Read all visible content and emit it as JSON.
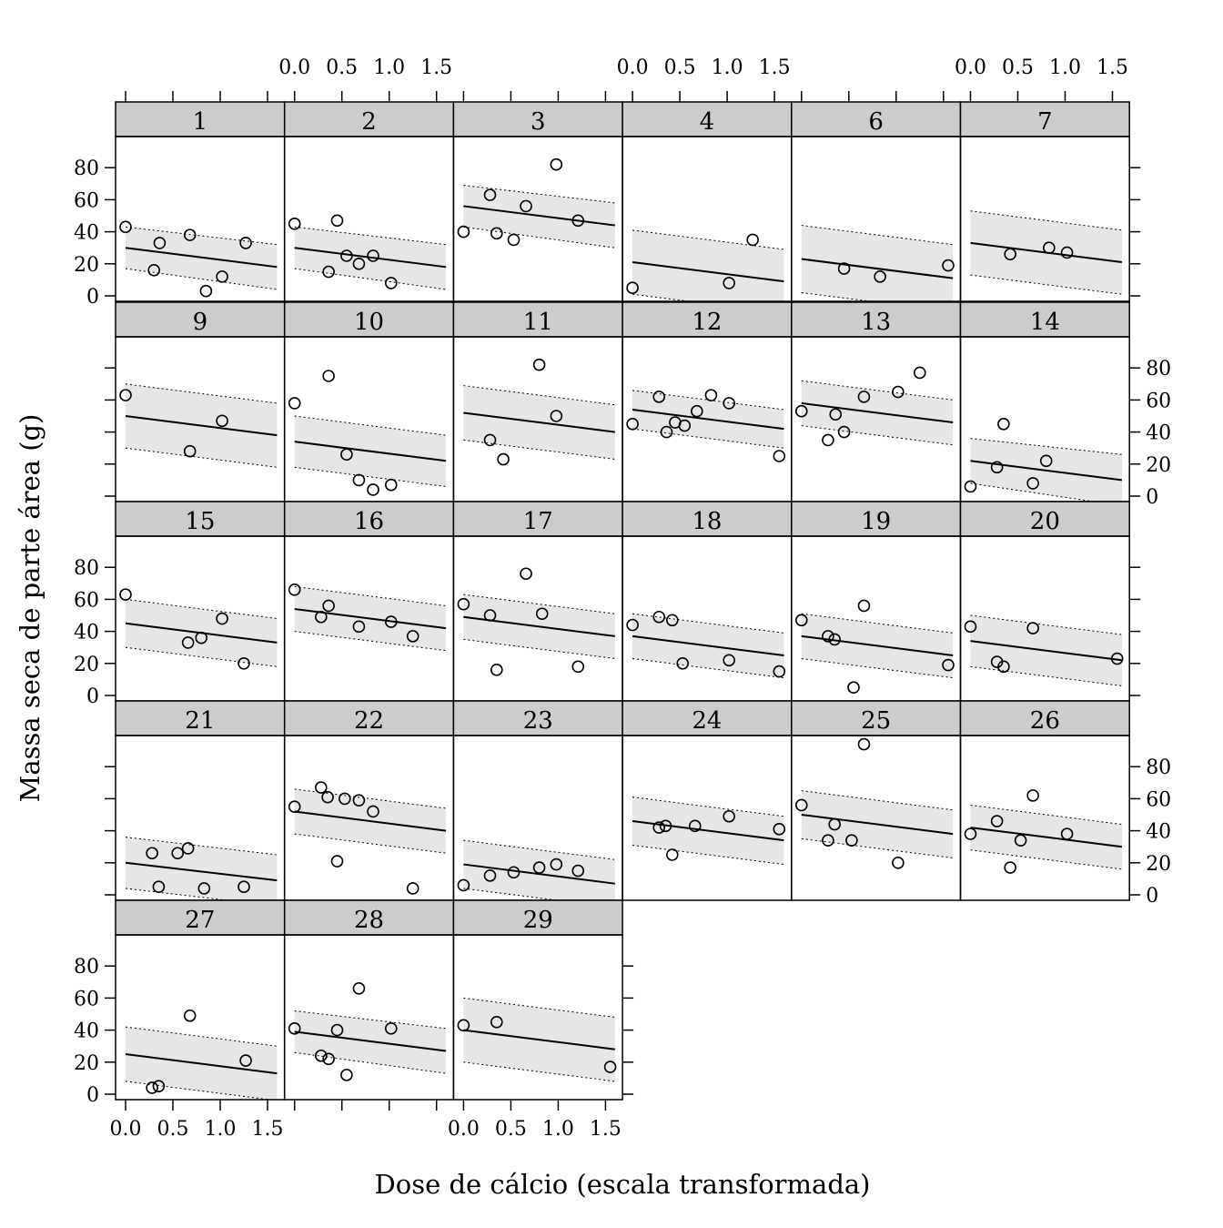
{
  "chart_data": {
    "type": "scatter",
    "title": "",
    "xlabel": "Dose de cálcio (escala transformada)",
    "ylabel": "Massa seca de parte área (g)",
    "xlim": [
      -0.1,
      1.65
    ],
    "ylim": [
      -2,
      100
    ],
    "xticks": [
      0.0,
      0.5,
      1.0,
      1.5
    ],
    "xtick_labels": [
      "0.0",
      "0.5",
      "1.0",
      "1.5"
    ],
    "yticks": [
      0,
      20,
      40,
      60,
      80
    ],
    "ytick_labels": [
      "0",
      "20",
      "40",
      "60",
      "80"
    ],
    "layout": "5 rows x 6 columns, panels ordered row-wise from the top-left",
    "band": "grey prediction band with dotted bounds, solid fitted line",
    "panels": [
      {
        "label": "1",
        "fit": [
          30,
          18
        ],
        "band": [
          13,
          14
        ],
        "points": [
          [
            0,
            43
          ],
          [
            0.3,
            16
          ],
          [
            0.36,
            33
          ],
          [
            0.68,
            38
          ],
          [
            0.85,
            3
          ],
          [
            1.02,
            12
          ],
          [
            1.27,
            33
          ]
        ]
      },
      {
        "label": "2",
        "fit": [
          30,
          18
        ],
        "band": [
          13,
          14
        ],
        "points": [
          [
            0,
            45
          ],
          [
            0.36,
            15
          ],
          [
            0.45,
            47
          ],
          [
            0.55,
            25
          ],
          [
            0.68,
            20
          ],
          [
            0.83,
            25
          ],
          [
            1.02,
            8
          ]
        ]
      },
      {
        "label": "3",
        "fit": [
          56,
          44
        ],
        "band": [
          13,
          14
        ],
        "points": [
          [
            0,
            40
          ],
          [
            0.28,
            63
          ],
          [
            0.35,
            39
          ],
          [
            0.53,
            35
          ],
          [
            0.66,
            56
          ],
          [
            0.98,
            82
          ],
          [
            1.21,
            47
          ]
        ]
      },
      {
        "label": "4",
        "fit": [
          21,
          9
        ],
        "band": [
          20,
          20
        ],
        "points": [
          [
            0,
            5
          ],
          [
            1.02,
            8
          ],
          [
            1.27,
            35
          ]
        ]
      },
      {
        "label": "6",
        "fit": [
          23,
          11
        ],
        "band": [
          21,
          21
        ],
        "points": [
          [
            0.45,
            17
          ],
          [
            0.83,
            12
          ],
          [
            1.55,
            19
          ]
        ]
      },
      {
        "label": "7",
        "fit": [
          33,
          21
        ],
        "band": [
          20,
          20
        ],
        "points": [
          [
            0.42,
            26
          ],
          [
            0.83,
            30
          ],
          [
            1.02,
            27
          ]
        ]
      },
      {
        "label": "9",
        "fit": [
          50,
          38
        ],
        "band": [
          20,
          20
        ],
        "points": [
          [
            0,
            63
          ],
          [
            0.68,
            28
          ],
          [
            1.02,
            47
          ]
        ]
      },
      {
        "label": "10",
        "fit": [
          34,
          22
        ],
        "band": [
          16,
          16
        ],
        "points": [
          [
            0,
            58
          ],
          [
            0.36,
            75
          ],
          [
            0.55,
            26
          ],
          [
            0.68,
            10
          ],
          [
            0.83,
            4
          ],
          [
            1.02,
            7
          ]
        ]
      },
      {
        "label": "11",
        "fit": [
          52,
          40
        ],
        "band": [
          17,
          17
        ],
        "points": [
          [
            0.28,
            35
          ],
          [
            0.42,
            23
          ],
          [
            0.8,
            82
          ],
          [
            0.98,
            50
          ]
        ]
      },
      {
        "label": "12",
        "fit": [
          54,
          42
        ],
        "band": [
          12,
          12
        ],
        "points": [
          [
            0,
            45
          ],
          [
            0.28,
            62
          ],
          [
            0.36,
            40
          ],
          [
            0.45,
            46
          ],
          [
            0.55,
            44
          ],
          [
            0.68,
            53
          ],
          [
            0.83,
            63
          ],
          [
            1.02,
            58
          ],
          [
            1.55,
            25
          ]
        ]
      },
      {
        "label": "13",
        "fit": [
          58,
          46
        ],
        "band": [
          14,
          14
        ],
        "points": [
          [
            0,
            53
          ],
          [
            0.28,
            35
          ],
          [
            0.36,
            51
          ],
          [
            0.45,
            40
          ],
          [
            0.66,
            62
          ],
          [
            1.02,
            65
          ],
          [
            1.25,
            77
          ]
        ]
      },
      {
        "label": "14",
        "fit": [
          22,
          10
        ],
        "band": [
          14,
          16
        ],
        "points": [
          [
            0,
            6
          ],
          [
            0.28,
            18
          ],
          [
            0.35,
            45
          ],
          [
            0.66,
            8
          ],
          [
            0.8,
            22
          ]
        ]
      },
      {
        "label": "15",
        "fit": [
          45,
          33
        ],
        "band": [
          15,
          15
        ],
        "points": [
          [
            0,
            63
          ],
          [
            0.66,
            33
          ],
          [
            0.8,
            36
          ],
          [
            1.02,
            48
          ],
          [
            1.25,
            20
          ]
        ]
      },
      {
        "label": "16",
        "fit": [
          54,
          42
        ],
        "band": [
          14,
          14
        ],
        "points": [
          [
            0,
            66
          ],
          [
            0.28,
            49
          ],
          [
            0.36,
            56
          ],
          [
            0.68,
            43
          ],
          [
            1.02,
            46
          ],
          [
            1.25,
            37
          ]
        ]
      },
      {
        "label": "17",
        "fit": [
          49,
          37
        ],
        "band": [
          14,
          14
        ],
        "points": [
          [
            0,
            57
          ],
          [
            0.28,
            50
          ],
          [
            0.35,
            16
          ],
          [
            0.66,
            76
          ],
          [
            0.83,
            51
          ],
          [
            1.21,
            18
          ]
        ]
      },
      {
        "label": "18",
        "fit": [
          37,
          25
        ],
        "band": [
          14,
          14
        ],
        "points": [
          [
            0,
            44
          ],
          [
            0.28,
            49
          ],
          [
            0.42,
            47
          ],
          [
            0.53,
            20
          ],
          [
            1.02,
            22
          ],
          [
            1.55,
            15
          ]
        ]
      },
      {
        "label": "19",
        "fit": [
          37,
          25
        ],
        "band": [
          14,
          14
        ],
        "points": [
          [
            0,
            47
          ],
          [
            0.28,
            37
          ],
          [
            0.35,
            35
          ],
          [
            0.55,
            5
          ],
          [
            0.66,
            56
          ],
          [
            1.55,
            19
          ]
        ]
      },
      {
        "label": "20",
        "fit": [
          34,
          22
        ],
        "band": [
          16,
          16
        ],
        "points": [
          [
            0,
            43
          ],
          [
            0.28,
            21
          ],
          [
            0.35,
            18
          ],
          [
            0.66,
            42
          ],
          [
            1.55,
            23
          ]
        ]
      },
      {
        "label": "21",
        "fit": [
          20,
          9
        ],
        "band": [
          16,
          16
        ],
        "points": [
          [
            0.28,
            26
          ],
          [
            0.35,
            5
          ],
          [
            0.55,
            26
          ],
          [
            0.66,
            29
          ],
          [
            0.83,
            4
          ],
          [
            1.25,
            5
          ]
        ]
      },
      {
        "label": "22",
        "fit": [
          52,
          40
        ],
        "band": [
          14,
          14
        ],
        "points": [
          [
            0,
            55
          ],
          [
            0.28,
            67
          ],
          [
            0.35,
            61
          ],
          [
            0.45,
            21
          ],
          [
            0.53,
            60
          ],
          [
            0.68,
            59
          ],
          [
            0.83,
            52
          ],
          [
            1.25,
            4
          ]
        ]
      },
      {
        "label": "23",
        "fit": [
          19,
          7
        ],
        "band": [
          15,
          15
        ],
        "points": [
          [
            0,
            6
          ],
          [
            0.28,
            12
          ],
          [
            0.53,
            14
          ],
          [
            0.8,
            17
          ],
          [
            0.98,
            19
          ],
          [
            1.21,
            15
          ]
        ]
      },
      {
        "label": "24",
        "fit": [
          46,
          34
        ],
        "band": [
          15,
          15
        ],
        "points": [
          [
            0.28,
            42
          ],
          [
            0.35,
            43
          ],
          [
            0.42,
            25
          ],
          [
            0.66,
            43
          ],
          [
            1.02,
            49
          ],
          [
            1.55,
            41
          ]
        ]
      },
      {
        "label": "25",
        "fit": [
          50,
          38
        ],
        "band": [
          15,
          15
        ],
        "points": [
          [
            0,
            56
          ],
          [
            0.28,
            34
          ],
          [
            0.35,
            44
          ],
          [
            0.53,
            34
          ],
          [
            0.66,
            94
          ],
          [
            1.02,
            20
          ]
        ]
      },
      {
        "label": "26",
        "fit": [
          42,
          30
        ],
        "band": [
          14,
          14
        ],
        "points": [
          [
            0,
            38
          ],
          [
            0.28,
            46
          ],
          [
            0.42,
            17
          ],
          [
            0.53,
            34
          ],
          [
            0.66,
            62
          ],
          [
            1.02,
            38
          ]
        ]
      },
      {
        "label": "27",
        "fit": [
          25,
          13
        ],
        "band": [
          17,
          17
        ],
        "points": [
          [
            0.28,
            4
          ],
          [
            0.35,
            5
          ],
          [
            0.68,
            49
          ],
          [
            1.27,
            21
          ]
        ]
      },
      {
        "label": "28",
        "fit": [
          39,
          27
        ],
        "band": [
          13,
          14
        ],
        "points": [
          [
            0,
            41
          ],
          [
            0.28,
            24
          ],
          [
            0.36,
            22
          ],
          [
            0.45,
            40
          ],
          [
            0.55,
            12
          ],
          [
            0.68,
            66
          ],
          [
            1.02,
            41
          ]
        ]
      },
      {
        "label": "29",
        "fit": [
          40,
          28
        ],
        "band": [
          20,
          20
        ],
        "points": [
          [
            0,
            43
          ],
          [
            0.35,
            45
          ],
          [
            1.55,
            17
          ]
        ]
      }
    ],
    "axes": {
      "bottom_panels": [
        "27",
        "29"
      ],
      "top_panels": [
        "2",
        "4",
        "7"
      ],
      "left_rows": [
        0,
        2,
        4
      ],
      "right_rows": [
        1,
        3
      ]
    },
    "grid": false,
    "legend": "none"
  }
}
